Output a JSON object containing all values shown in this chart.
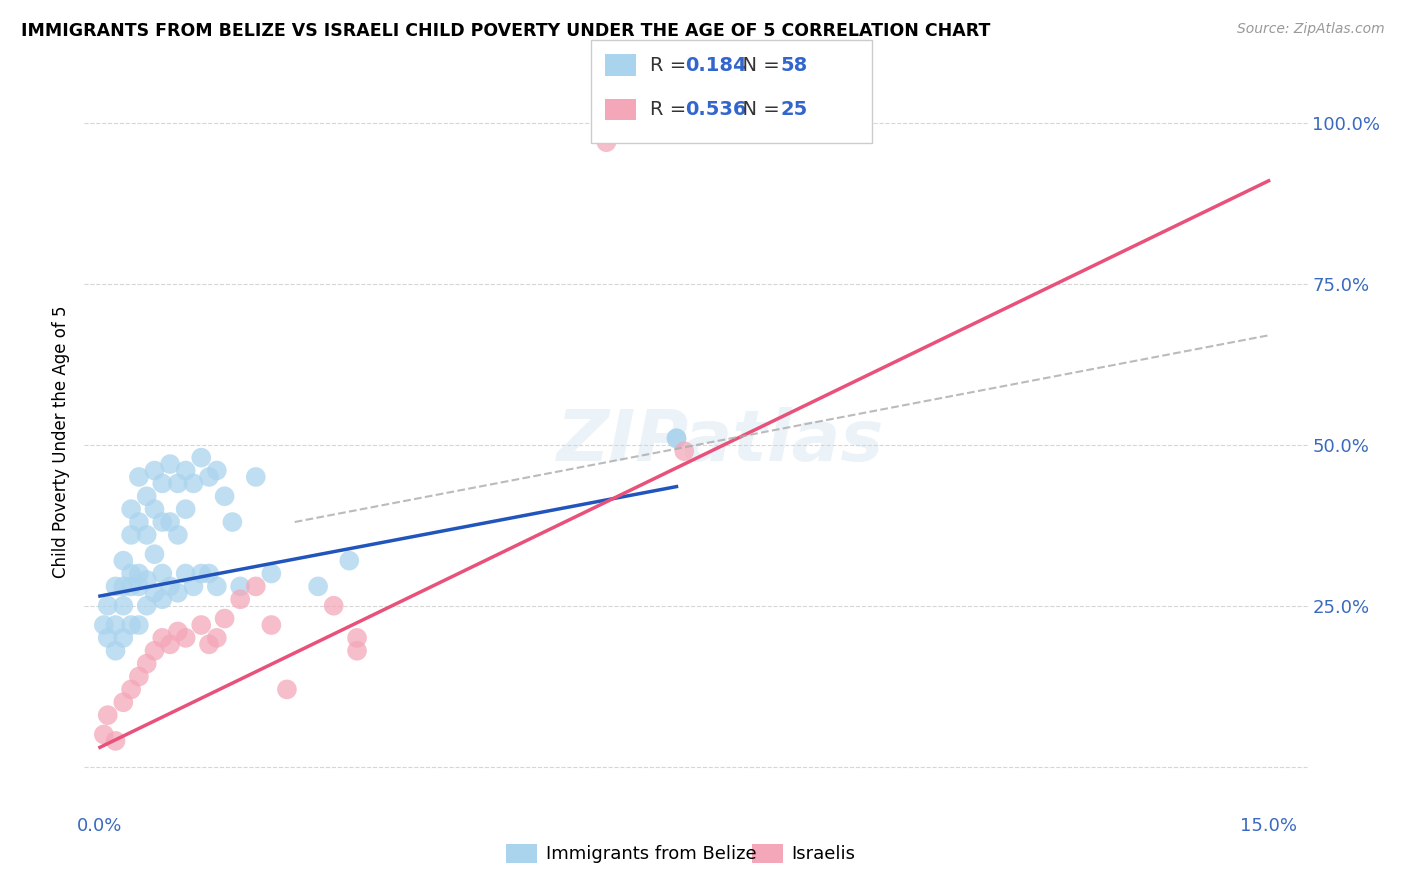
{
  "title": "IMMIGRANTS FROM BELIZE VS ISRAELI CHILD POVERTY UNDER THE AGE OF 5 CORRELATION CHART",
  "source": "Source: ZipAtlas.com",
  "ylabel": "Child Poverty Under the Age of 5",
  "yticks": [
    0.0,
    0.25,
    0.5,
    0.75,
    1.0
  ],
  "ytick_labels": [
    "",
    "25.0%",
    "50.0%",
    "75.0%",
    "100.0%"
  ],
  "xticks": [
    0.0,
    0.025,
    0.05,
    0.075,
    0.1,
    0.125,
    0.15
  ],
  "xlim": [
    -0.002,
    0.155
  ],
  "ylim": [
    -0.07,
    1.08
  ],
  "blue_R": "0.184",
  "blue_N": "58",
  "pink_R": "0.536",
  "pink_N": "25",
  "legend_label_blue": "Immigrants from Belize",
  "legend_label_pink": "Israelis",
  "blue_color": "#aad4ed",
  "pink_color": "#f4a7b9",
  "blue_line_color": "#2255bb",
  "pink_line_color": "#e8527a",
  "dash_line_color": "#aaaaaa",
  "watermark": "ZIPatlas",
  "blue_scatter_x": [
    0.0005,
    0.001,
    0.001,
    0.002,
    0.002,
    0.002,
    0.003,
    0.003,
    0.003,
    0.003,
    0.004,
    0.004,
    0.004,
    0.004,
    0.004,
    0.005,
    0.005,
    0.005,
    0.005,
    0.005,
    0.006,
    0.006,
    0.006,
    0.006,
    0.007,
    0.007,
    0.007,
    0.007,
    0.008,
    0.008,
    0.008,
    0.008,
    0.009,
    0.009,
    0.009,
    0.01,
    0.01,
    0.01,
    0.011,
    0.011,
    0.011,
    0.012,
    0.012,
    0.013,
    0.013,
    0.014,
    0.014,
    0.015,
    0.015,
    0.016,
    0.017,
    0.018,
    0.02,
    0.022,
    0.028,
    0.032,
    0.074,
    0.074
  ],
  "blue_scatter_y": [
    0.22,
    0.25,
    0.2,
    0.28,
    0.22,
    0.18,
    0.32,
    0.28,
    0.25,
    0.2,
    0.4,
    0.36,
    0.3,
    0.28,
    0.22,
    0.45,
    0.38,
    0.3,
    0.28,
    0.22,
    0.42,
    0.36,
    0.29,
    0.25,
    0.46,
    0.4,
    0.33,
    0.27,
    0.44,
    0.38,
    0.3,
    0.26,
    0.47,
    0.38,
    0.28,
    0.44,
    0.36,
    0.27,
    0.46,
    0.4,
    0.3,
    0.44,
    0.28,
    0.48,
    0.3,
    0.45,
    0.3,
    0.46,
    0.28,
    0.42,
    0.38,
    0.28,
    0.45,
    0.3,
    0.28,
    0.32,
    0.51,
    0.51
  ],
  "pink_scatter_x": [
    0.0005,
    0.001,
    0.002,
    0.003,
    0.004,
    0.005,
    0.006,
    0.007,
    0.008,
    0.009,
    0.01,
    0.011,
    0.013,
    0.014,
    0.015,
    0.016,
    0.018,
    0.02,
    0.022,
    0.024,
    0.03,
    0.033,
    0.033,
    0.065,
    0.075
  ],
  "pink_scatter_y": [
    0.05,
    0.08,
    0.04,
    0.1,
    0.12,
    0.14,
    0.16,
    0.18,
    0.2,
    0.19,
    0.21,
    0.2,
    0.22,
    0.19,
    0.2,
    0.23,
    0.26,
    0.28,
    0.22,
    0.12,
    0.25,
    0.2,
    0.18,
    0.97,
    0.49
  ],
  "blue_line_x": [
    0.0,
    0.074
  ],
  "blue_line_y": [
    0.265,
    0.435
  ],
  "pink_line_x": [
    0.0,
    0.15
  ],
  "pink_line_y": [
    0.03,
    0.91
  ],
  "dash_line_x": [
    0.025,
    0.15
  ],
  "dash_line_y": [
    0.38,
    0.67
  ]
}
